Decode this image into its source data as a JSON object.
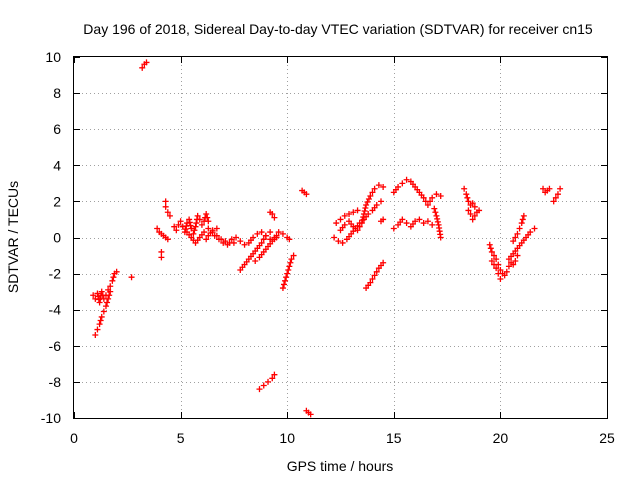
{
  "chart_data": {
    "type": "scatter",
    "title": "Day 196 of 2018, Sidereal Day-to-day VTEC variation (SDTVAR) for receiver cn15",
    "xlabel": "GPS time / hours",
    "ylabel": "SDTVAR / TECUs",
    "xlim": [
      0,
      25
    ],
    "ylim": [
      -10,
      10
    ],
    "xticks": [
      "0",
      "5",
      "10",
      "15",
      "20",
      "25"
    ],
    "yticks": [
      "-10",
      "-8",
      "-6",
      "-4",
      "-2",
      "0",
      "2",
      "4",
      "6",
      "8",
      "10"
    ],
    "grid": true,
    "marker": "+",
    "color": "#ff0000",
    "segments": [
      [
        [
          0.9,
          -3.2
        ],
        [
          1.0,
          -3.4
        ],
        [
          1.1,
          -3.1
        ],
        [
          1.2,
          -3.6
        ],
        [
          1.3,
          -3.0
        ],
        [
          1.4,
          -3.4
        ],
        [
          1.5,
          -3.2
        ],
        [
          1.6,
          -2.9
        ],
        [
          1.7,
          -2.7
        ],
        [
          1.8,
          -2.4
        ],
        [
          1.9,
          -2.0
        ],
        [
          2.0,
          -1.9
        ]
      ],
      [
        [
          1.0,
          -5.4
        ],
        [
          1.1,
          -5.1
        ],
        [
          1.2,
          -4.8
        ],
        [
          1.3,
          -4.4
        ],
        [
          1.4,
          -4.1
        ],
        [
          1.5,
          -3.8
        ],
        [
          1.6,
          -3.4
        ],
        [
          1.7,
          -3.0
        ]
      ],
      [
        [
          2.7,
          -2.2
        ]
      ],
      [
        [
          3.2,
          9.4
        ],
        [
          3.3,
          9.6
        ],
        [
          3.4,
          9.7
        ]
      ],
      [
        [
          3.9,
          0.5
        ],
        [
          4.0,
          0.3
        ],
        [
          4.1,
          0.2
        ],
        [
          4.2,
          0.1
        ],
        [
          4.3,
          0.0
        ],
        [
          4.4,
          -0.1
        ]
      ],
      [
        [
          4.1,
          -0.8
        ],
        [
          4.1,
          -1.1
        ]
      ],
      [
        [
          4.3,
          2.0
        ],
        [
          4.3,
          1.7
        ],
        [
          4.4,
          1.4
        ],
        [
          4.5,
          1.2
        ]
      ],
      [
        [
          4.7,
          0.6
        ],
        [
          4.8,
          0.4
        ],
        [
          4.9,
          0.7
        ],
        [
          5.0,
          0.9
        ],
        [
          5.1,
          0.6
        ],
        [
          5.2,
          0.3
        ],
        [
          5.3,
          0.8
        ],
        [
          5.4,
          1.0
        ],
        [
          5.5,
          0.5
        ],
        [
          5.6,
          0.2
        ],
        [
          5.7,
          0.6
        ],
        [
          5.8,
          1.2
        ],
        [
          5.9,
          1.0
        ],
        [
          6.0,
          0.7
        ],
        [
          6.1,
          0.9
        ],
        [
          6.2,
          1.3
        ],
        [
          6.3,
          0.9
        ]
      ],
      [
        [
          5.3,
          0.3
        ],
        [
          5.5,
          0.0
        ],
        [
          5.7,
          -0.3
        ],
        [
          5.9,
          0.0
        ],
        [
          6.1,
          0.3
        ],
        [
          6.3,
          0.5
        ],
        [
          6.5,
          0.3
        ],
        [
          6.7,
          0.1
        ],
        [
          6.9,
          -0.1
        ],
        [
          7.1,
          -0.2
        ],
        [
          7.3,
          -0.3
        ],
        [
          7.4,
          -0.1
        ]
      ],
      [
        [
          6.2,
          -0.1
        ],
        [
          6.3,
          0.1
        ],
        [
          6.5,
          0.4
        ],
        [
          6.7,
          0.5
        ]
      ],
      [
        [
          6.6,
          0.1
        ],
        [
          6.8,
          -0.1
        ],
        [
          7.0,
          -0.3
        ],
        [
          7.2,
          -0.4
        ]
      ],
      [
        [
          7.5,
          -0.3
        ],
        [
          7.6,
          0.0
        ],
        [
          7.8,
          -0.2
        ],
        [
          8.0,
          -0.4
        ]
      ],
      [
        [
          7.8,
          -1.8
        ],
        [
          8.0,
          -1.5
        ],
        [
          8.2,
          -1.2
        ],
        [
          8.4,
          -0.9
        ],
        [
          8.6,
          -0.6
        ],
        [
          8.8,
          -0.3
        ],
        [
          9.0,
          0.1
        ],
        [
          9.2,
          0.3
        ]
      ],
      [
        [
          8.2,
          -0.3
        ],
        [
          8.4,
          0.0
        ],
        [
          8.6,
          0.2
        ],
        [
          8.8,
          0.3
        ],
        [
          9.0,
          0.1
        ],
        [
          9.2,
          -0.1
        ],
        [
          9.4,
          0.0
        ]
      ],
      [
        [
          8.5,
          -1.3
        ],
        [
          8.7,
          -1.1
        ],
        [
          8.9,
          -0.8
        ],
        [
          9.1,
          -0.5
        ],
        [
          9.3,
          -0.2
        ],
        [
          9.5,
          0.0
        ]
      ],
      [
        [
          8.7,
          -8.4
        ],
        [
          8.9,
          -8.2
        ],
        [
          9.1,
          -8.0
        ],
        [
          9.3,
          -7.8
        ],
        [
          9.4,
          -7.6
        ]
      ],
      [
        [
          9.2,
          1.4
        ],
        [
          9.3,
          1.3
        ],
        [
          9.4,
          1.1
        ]
      ],
      [
        [
          9.4,
          -0.1
        ],
        [
          9.5,
          0.1
        ],
        [
          9.6,
          0.3
        ],
        [
          9.8,
          0.2
        ],
        [
          10.0,
          0.0
        ],
        [
          10.1,
          -0.1
        ]
      ],
      [
        [
          9.8,
          -2.8
        ],
        [
          9.9,
          -2.4
        ],
        [
          10.0,
          -2.0
        ],
        [
          10.1,
          -1.6
        ],
        [
          10.2,
          -1.2
        ],
        [
          10.3,
          -1.0
        ]
      ],
      [
        [
          10.7,
          2.6
        ],
        [
          10.8,
          2.5
        ],
        [
          10.9,
          2.4
        ]
      ],
      [
        [
          10.9,
          -9.6
        ],
        [
          11.0,
          -9.7
        ],
        [
          11.1,
          -9.8
        ]
      ],
      [
        [
          12.3,
          0.8
        ],
        [
          12.5,
          1.0
        ],
        [
          12.7,
          1.2
        ],
        [
          12.9,
          1.3
        ],
        [
          13.1,
          1.4
        ],
        [
          13.3,
          1.5
        ]
      ],
      [
        [
          12.2,
          0.0
        ],
        [
          12.4,
          -0.2
        ],
        [
          12.6,
          -0.3
        ],
        [
          12.8,
          -0.1
        ],
        [
          13.0,
          0.2
        ],
        [
          13.2,
          0.5
        ],
        [
          13.4,
          0.8
        ],
        [
          13.6,
          1.0
        ],
        [
          13.8,
          1.3
        ],
        [
          14.0,
          1.5
        ],
        [
          14.2,
          1.8
        ],
        [
          14.4,
          2.0
        ]
      ],
      [
        [
          12.5,
          0.4
        ],
        [
          12.7,
          0.7
        ],
        [
          12.9,
          0.9
        ],
        [
          13.1,
          0.6
        ],
        [
          13.3,
          0.4
        ],
        [
          13.5,
          0.8
        ],
        [
          13.7,
          1.8
        ],
        [
          13.9,
          2.3
        ],
        [
          14.1,
          2.7
        ],
        [
          14.3,
          2.9
        ],
        [
          14.5,
          2.8
        ]
      ],
      [
        [
          13.7,
          -2.8
        ],
        [
          13.9,
          -2.5
        ],
        [
          14.1,
          -2.1
        ],
        [
          14.3,
          -1.7
        ],
        [
          14.5,
          -1.4
        ]
      ],
      [
        [
          14.4,
          0.9
        ],
        [
          14.5,
          1.0
        ]
      ],
      [
        [
          15.0,
          2.5
        ],
        [
          15.2,
          2.8
        ],
        [
          15.4,
          3.0
        ],
        [
          15.6,
          3.2
        ],
        [
          15.8,
          3.1
        ],
        [
          16.0,
          2.8
        ],
        [
          16.2,
          2.5
        ],
        [
          16.4,
          2.2
        ],
        [
          16.6,
          1.8
        ],
        [
          16.8,
          2.2
        ],
        [
          17.0,
          2.4
        ],
        [
          17.2,
          2.3
        ]
      ],
      [
        [
          15.0,
          0.5
        ],
        [
          15.2,
          0.7
        ],
        [
          15.4,
          1.0
        ],
        [
          15.6,
          0.8
        ],
        [
          15.8,
          0.6
        ],
        [
          16.0,
          0.9
        ],
        [
          16.2,
          1.0
        ],
        [
          16.4,
          0.8
        ],
        [
          16.6,
          0.9
        ],
        [
          16.8,
          0.7
        ]
      ],
      [
        [
          16.9,
          1.6
        ],
        [
          17.0,
          1.2
        ],
        [
          17.1,
          0.7
        ],
        [
          17.2,
          0.0
        ]
      ],
      [
        [
          18.3,
          2.7
        ],
        [
          18.4,
          2.4
        ],
        [
          18.5,
          2.0
        ],
        [
          18.6,
          1.8
        ],
        [
          18.7,
          1.9
        ],
        [
          18.8,
          1.7
        ],
        [
          18.9,
          1.4
        ],
        [
          19.0,
          1.5
        ]
      ],
      [
        [
          18.5,
          1.5
        ],
        [
          18.6,
          1.3
        ],
        [
          18.7,
          1.0
        ],
        [
          18.8,
          1.2
        ]
      ],
      [
        [
          19.5,
          -0.4
        ],
        [
          19.6,
          -0.8
        ],
        [
          19.7,
          -1.0
        ],
        [
          19.8,
          -1.2
        ],
        [
          19.9,
          -1.5
        ],
        [
          20.0,
          -1.8
        ],
        [
          20.1,
          -2.0
        ],
        [
          20.2,
          -2.1
        ],
        [
          20.3,
          -1.9
        ],
        [
          20.4,
          -1.6
        ],
        [
          20.5,
          -1.4
        ],
        [
          20.6,
          -1.5
        ],
        [
          20.7,
          -1.3
        ],
        [
          20.8,
          -1.0
        ]
      ],
      [
        [
          19.6,
          -1.3
        ],
        [
          19.8,
          -1.7
        ],
        [
          19.9,
          -2.0
        ],
        [
          20.0,
          -2.3
        ]
      ],
      [
        [
          20.4,
          -1.2
        ],
        [
          20.6,
          -0.9
        ],
        [
          20.8,
          -0.6
        ],
        [
          21.0,
          -0.3
        ],
        [
          21.2,
          0.0
        ],
        [
          21.4,
          0.3
        ],
        [
          21.6,
          0.5
        ]
      ],
      [
        [
          20.6,
          -0.2
        ],
        [
          20.8,
          0.2
        ],
        [
          20.9,
          0.5
        ],
        [
          21.0,
          0.8
        ],
        [
          21.1,
          1.2
        ]
      ],
      [
        [
          22.0,
          2.7
        ],
        [
          22.1,
          2.5
        ],
        [
          22.2,
          2.6
        ],
        [
          22.3,
          2.7
        ]
      ],
      [
        [
          22.5,
          2.0
        ],
        [
          22.6,
          2.2
        ],
        [
          22.7,
          2.4
        ],
        [
          22.8,
          2.7
        ]
      ]
    ]
  }
}
